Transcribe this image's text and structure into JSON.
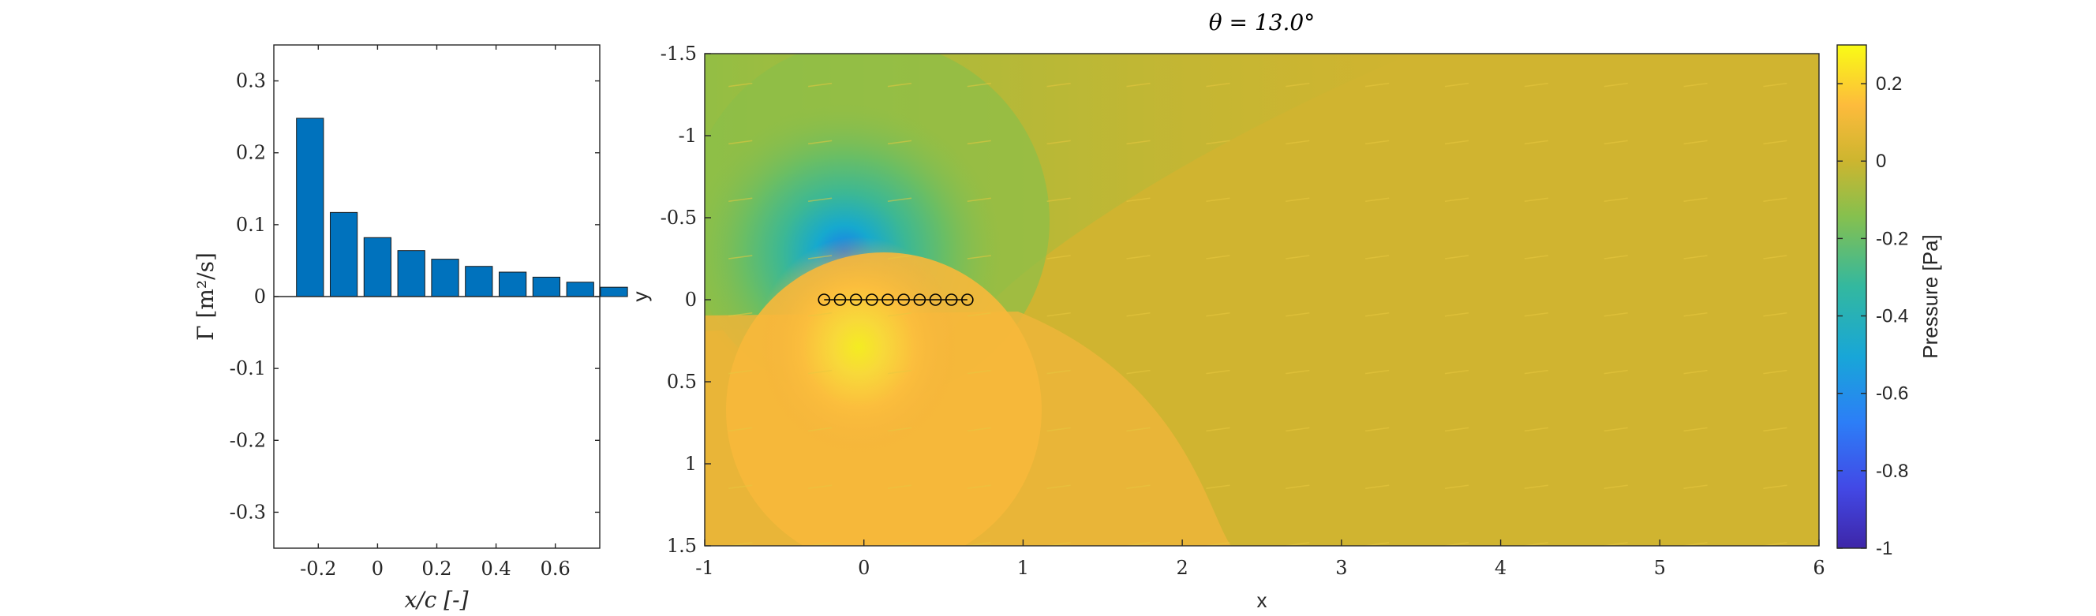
{
  "chart_data": [
    {
      "type": "bar",
      "panel": "circulation",
      "x": [
        -0.228,
        -0.114,
        0.0,
        0.114,
        0.228,
        0.342,
        0.456,
        0.57,
        0.684,
        0.798
      ],
      "values": [
        0.248,
        0.117,
        0.082,
        0.064,
        0.052,
        0.042,
        0.034,
        0.027,
        0.02,
        0.013
      ],
      "xlabel": "x/c [-]",
      "ylabel": "Γ [m²/s]",
      "xlim": [
        -0.35,
        0.75
      ],
      "ylim": [
        -0.35,
        0.35
      ],
      "xticks": [
        -0.2,
        0,
        0.2,
        0.4,
        0.6
      ],
      "xtick_labels": [
        "-0.2",
        "0",
        "0.2",
        "0.4",
        "0.6"
      ],
      "yticks": [
        0.3,
        0.2,
        0.1,
        0,
        -0.1,
        -0.2,
        -0.3
      ],
      "ytick_labels": [
        "0.3",
        "0.2",
        "0.1",
        "0",
        "-0.1",
        "-0.2",
        "-0.3"
      ],
      "bar_color": "#0072BD",
      "grid": false
    },
    {
      "type": "heatmap",
      "panel": "pressure-field",
      "title": "θ = 13.0°",
      "xlabel": "x",
      "ylabel": "y",
      "xlim": [
        -1,
        6
      ],
      "ylim": [
        -1.5,
        1.5
      ],
      "y_reversed": true,
      "xticks": [
        -1,
        0,
        1,
        2,
        3,
        4,
        5,
        6
      ],
      "xtick_labels": [
        "-1",
        "0",
        "1",
        "2",
        "3",
        "4",
        "5",
        "6"
      ],
      "yticks": [
        -1.5,
        -1,
        -0.5,
        0,
        0.5,
        1,
        1.5
      ],
      "ytick_labels": [
        "-1.5",
        "-1",
        "-0.5",
        "0",
        "0.5",
        "1",
        "1.5"
      ],
      "panel_x": [
        -0.25,
        -0.15,
        -0.05,
        0.05,
        0.15,
        0.25,
        0.35,
        0.45,
        0.55,
        0.65
      ],
      "panel_y": 0,
      "suction_peak": {
        "x": -0.15,
        "y": -0.3,
        "value": -0.7
      },
      "pressure_peak": {
        "x": -0.05,
        "y": 0.25,
        "value": 0.22
      },
      "colorbar": {
        "label": "Pressure [Pa]",
        "range": [
          -1,
          0.3
        ],
        "ticks": [
          0.2,
          0,
          -0.2,
          -0.4,
          -0.6,
          -0.8,
          -1
        ],
        "tick_labels": [
          "0.2",
          "0",
          "-0.2",
          "-0.4",
          "-0.6",
          "-0.8",
          "-1"
        ],
        "colormap": "parula"
      },
      "background_color": "#D0B430",
      "vector_color": "#E8C840",
      "marker_color": "#000000"
    }
  ]
}
